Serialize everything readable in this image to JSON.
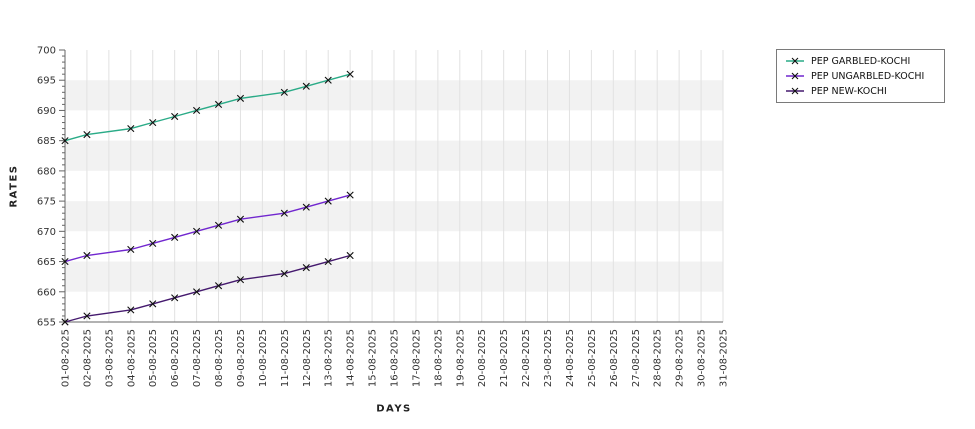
{
  "chart_data": {
    "type": "line",
    "title": "",
    "xlabel": "DAYS",
    "ylabel": "RATES",
    "ylim": [
      655,
      700
    ],
    "y_ticks": [
      700,
      695,
      690,
      685,
      680,
      675,
      670,
      665,
      660,
      655
    ],
    "y_minor_interval": 1,
    "grid": true,
    "band_colors": [
      "#ffffff",
      "#f2f2f2"
    ],
    "legend_position": "top-right",
    "x_categories": [
      "01-08-2025",
      "02-08-2025",
      "03-08-2025",
      "04-08-2025",
      "05-08-2025",
      "06-08-2025",
      "07-08-2025",
      "08-08-2025",
      "09-08-2025",
      "10-08-2025",
      "11-08-2025",
      "12-08-2025",
      "13-08-2025",
      "14-08-2025",
      "15-08-2025",
      "16-08-2025",
      "17-08-2025",
      "18-08-2025",
      "19-08-2025",
      "20-08-2025",
      "21-08-2025",
      "22-08-2025",
      "23-08-2025",
      "24-08-2025",
      "25-08-2025",
      "26-08-2025",
      "27-08-2025",
      "28-08-2025",
      "29-08-2025",
      "30-08-2025",
      "31-08-2025"
    ],
    "series": [
      {
        "name": "PEP GARBLED-KOCHI",
        "color": "#2aab87",
        "marker": "x",
        "marker_color": "#111111",
        "x": [
          "01-08-2025",
          "02-08-2025",
          "04-08-2025",
          "05-08-2025",
          "06-08-2025",
          "07-08-2025",
          "08-08-2025",
          "09-08-2025",
          "11-08-2025",
          "12-08-2025",
          "13-08-2025",
          "14-08-2025"
        ],
        "values": [
          685,
          686,
          687,
          688,
          689,
          690,
          691,
          692,
          693,
          694,
          695,
          696
        ]
      },
      {
        "name": "PEP UNGARBLED-KOCHI",
        "color": "#7127cf",
        "marker": "x",
        "marker_color": "#111111",
        "x": [
          "01-08-2025",
          "02-08-2025",
          "04-08-2025",
          "05-08-2025",
          "06-08-2025",
          "07-08-2025",
          "08-08-2025",
          "09-08-2025",
          "11-08-2025",
          "12-08-2025",
          "13-08-2025",
          "14-08-2025"
        ],
        "values": [
          665,
          666,
          667,
          668,
          669,
          670,
          671,
          672,
          673,
          674,
          675,
          676
        ]
      },
      {
        "name": "PEP NEW-KOCHI",
        "color": "#451a6e",
        "marker": "x",
        "marker_color": "#111111",
        "x": [
          "01-08-2025",
          "02-08-2025",
          "04-08-2025",
          "05-08-2025",
          "06-08-2025",
          "07-08-2025",
          "08-08-2025",
          "09-08-2025",
          "11-08-2025",
          "12-08-2025",
          "13-08-2025",
          "14-08-2025"
        ],
        "values": [
          655,
          656,
          657,
          658,
          659,
          660,
          661,
          662,
          663,
          664,
          665,
          666
        ]
      }
    ]
  },
  "style": {
    "axis_line_color": "#666666",
    "tick_color": "#666666",
    "tick_label_color": "#333333",
    "grid_color": "#e2e2e2"
  }
}
